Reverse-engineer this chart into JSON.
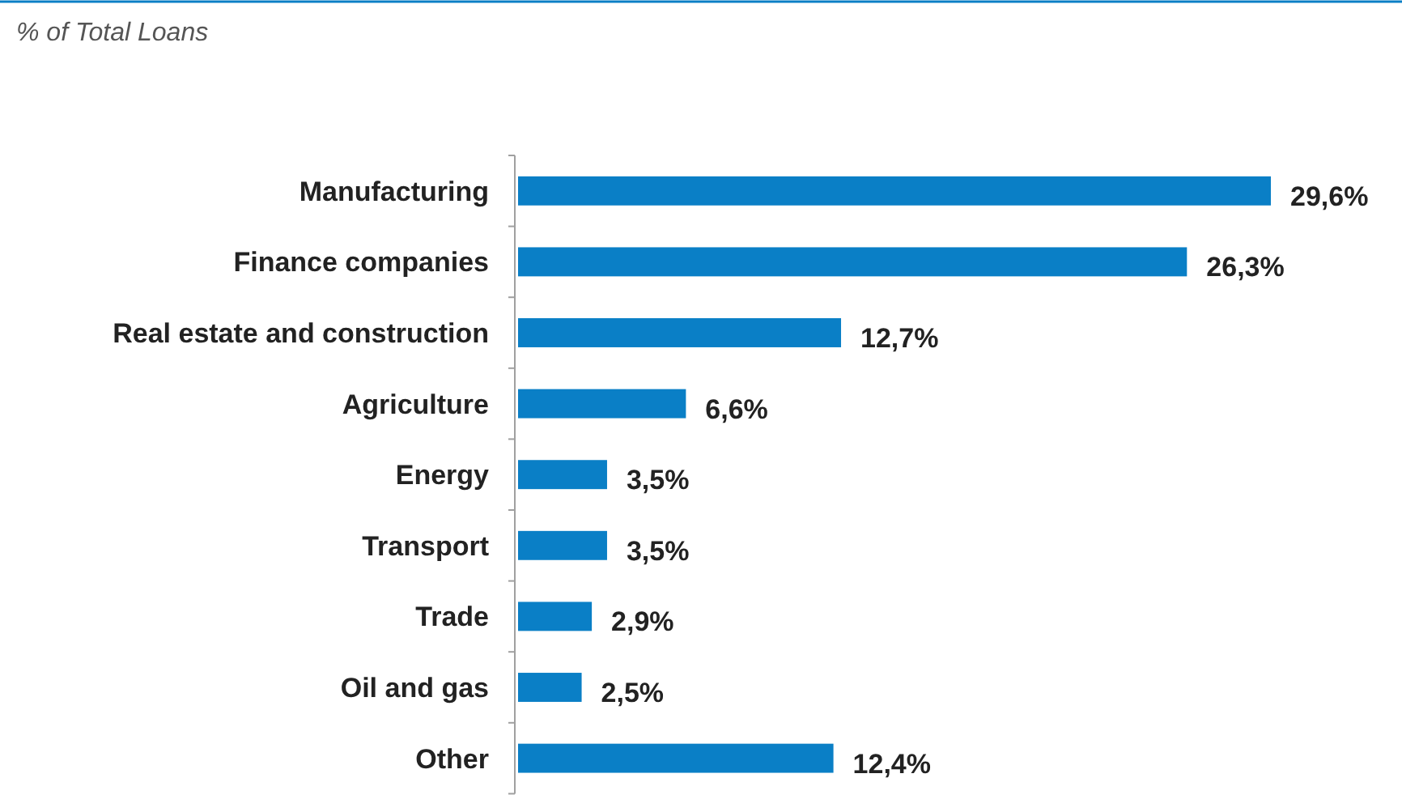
{
  "chart_data": {
    "type": "bar",
    "orientation": "horizontal",
    "title": "% of Total Loans",
    "categories": [
      "Manufacturing",
      "Finance companies",
      "Real estate and construction",
      "Agriculture",
      "Energy",
      "Transport",
      "Trade",
      "Oil and gas",
      "Other"
    ],
    "values": [
      29.6,
      26.3,
      12.7,
      6.6,
      3.5,
      3.5,
      2.9,
      2.5,
      12.4
    ],
    "value_labels": [
      "29,6%",
      "26,3%",
      "12,7%",
      "6,6%",
      "3,5%",
      "3,5%",
      "2,9%",
      "2,5%",
      "12,4%"
    ],
    "color": "#0a7fc6"
  }
}
